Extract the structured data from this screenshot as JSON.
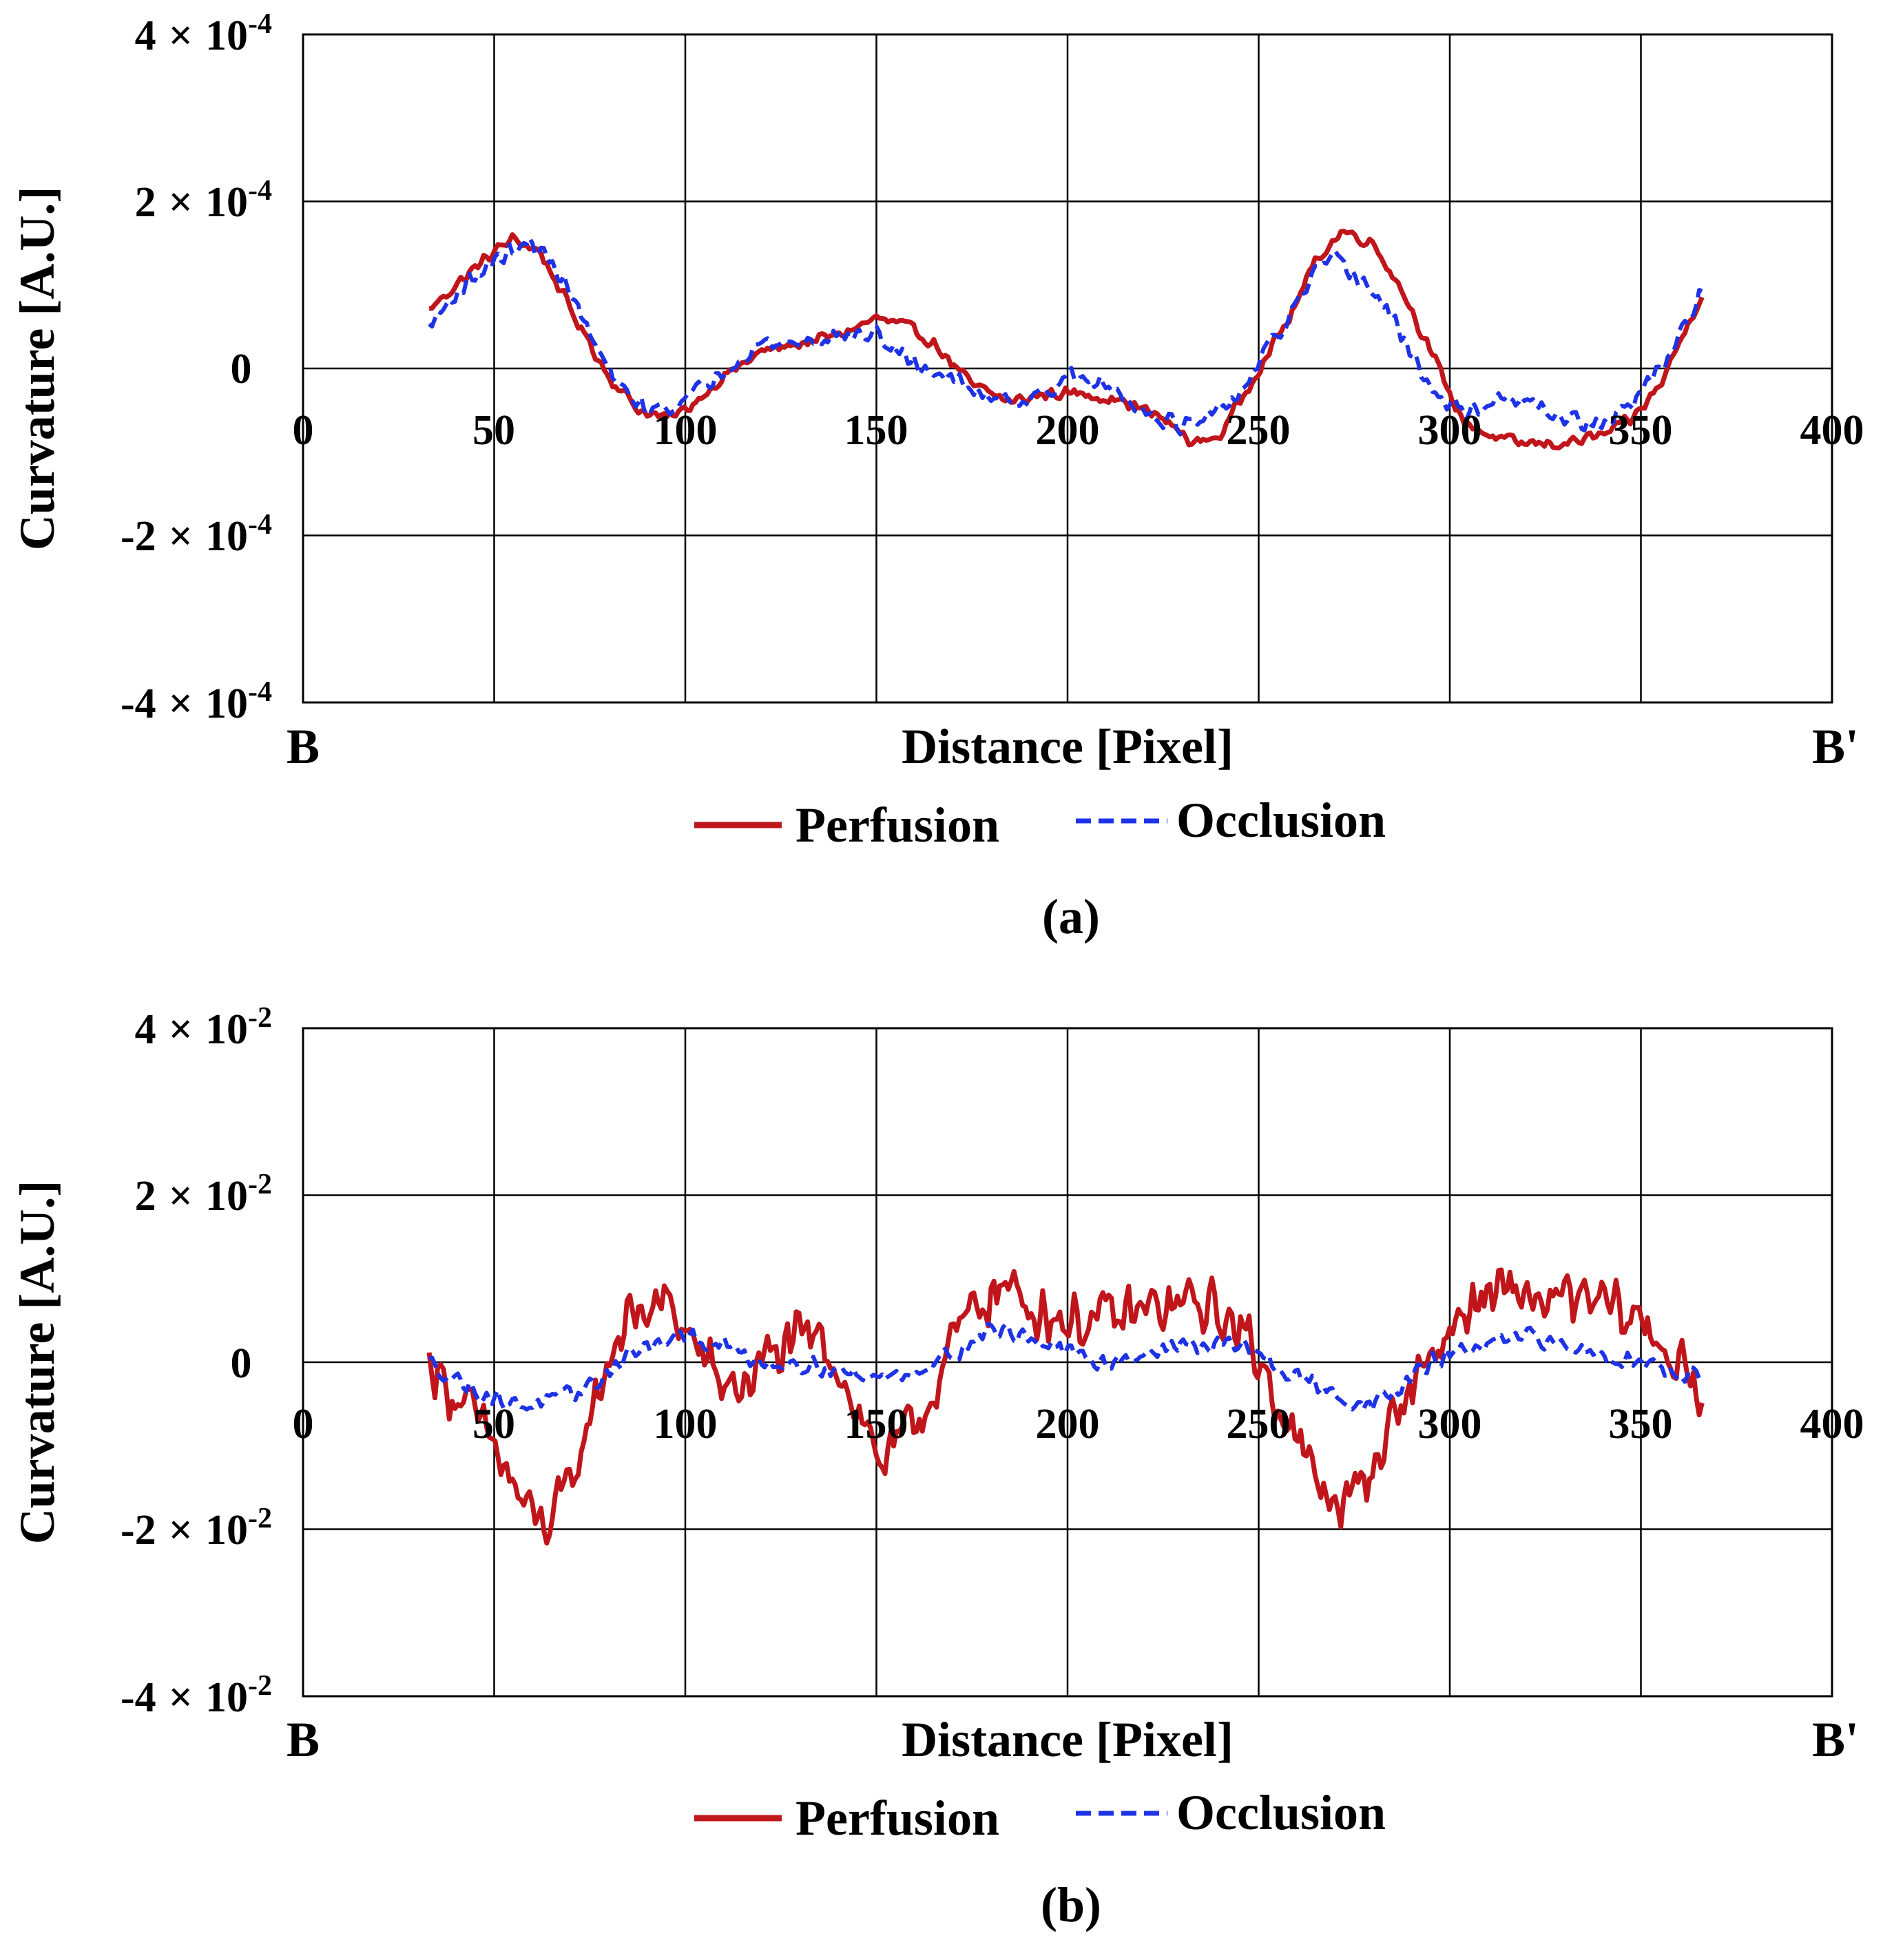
{
  "chart_data": [
    {
      "type": "line",
      "panel_label": "(a)",
      "xlabel": "Distance [Pixel]",
      "ylabel": "Curvature [A.U.]",
      "x_start_label": "B",
      "x_end_label": "B'",
      "xlim": [
        0,
        400
      ],
      "ylim": [
        -0.0004,
        0.0004
      ],
      "xticks": [
        0,
        50,
        100,
        150,
        200,
        250,
        300,
        350,
        400
      ],
      "yticks": [
        {
          "value": 0.0004,
          "mant": "4",
          "times": "×",
          "base": "10",
          "exp": "-4"
        },
        {
          "value": 0.0002,
          "mant": "2",
          "times": "×",
          "base": "10",
          "exp": "-4"
        },
        {
          "value": 0,
          "mant": "0",
          "times": "",
          "base": "",
          "exp": ""
        },
        {
          "value": -0.0002,
          "mant": "-2",
          "times": "×",
          "base": "10",
          "exp": "-4"
        },
        {
          "value": -0.0004,
          "mant": "-4",
          "times": "×",
          "base": "10",
          "exp": "-4"
        }
      ],
      "grid": true,
      "legend_position": "bottom-center",
      "series": [
        {
          "name": "Perfusion",
          "color": "#c0161b",
          "dash": "solid",
          "noise": 8.5e-06,
          "anchors": [
            [
              33,
              7e-05
            ],
            [
              40,
              0.0001
            ],
            [
              50,
              0.00014
            ],
            [
              55,
              0.000155
            ],
            [
              62,
              0.00014
            ],
            [
              70,
              7e-05
            ],
            [
              80,
              -1e-05
            ],
            [
              88,
              -5e-05
            ],
            [
              95,
              -6e-05
            ],
            [
              100,
              -5e-05
            ],
            [
              110,
              -1e-05
            ],
            [
              120,
              2e-05
            ],
            [
              130,
              3e-05
            ],
            [
              140,
              4e-05
            ],
            [
              150,
              6e-05
            ],
            [
              158,
              5e-05
            ],
            [
              165,
              3e-05
            ],
            [
              175,
              -2e-05
            ],
            [
              185,
              -4e-05
            ],
            [
              195,
              -3e-05
            ],
            [
              205,
              -3e-05
            ],
            [
              215,
              -4e-05
            ],
            [
              225,
              -6e-05
            ],
            [
              233,
              -9e-05
            ],
            [
              240,
              -8e-05
            ],
            [
              250,
              0
            ],
            [
              258,
              6e-05
            ],
            [
              265,
              0.00013
            ],
            [
              272,
              0.000165
            ],
            [
              280,
              0.00015
            ],
            [
              288,
              9e-05
            ],
            [
              295,
              2e-05
            ],
            [
              303,
              -6e-05
            ],
            [
              310,
              -8e-05
            ],
            [
              318,
              -9e-05
            ],
            [
              330,
              -9e-05
            ],
            [
              340,
              -8e-05
            ],
            [
              348,
              -6e-05
            ],
            [
              355,
              -2e-05
            ],
            [
              360,
              3e-05
            ],
            [
              366,
              9e-05
            ]
          ]
        },
        {
          "name": "Occlusion",
          "color": "#1e32e6",
          "dash": "dashed",
          "noise": 1.25e-05,
          "anchors": [
            [
              33,
              5e-05
            ],
            [
              40,
              9e-05
            ],
            [
              50,
              0.00013
            ],
            [
              60,
              0.00015
            ],
            [
              68,
              0.00011
            ],
            [
              75,
              4e-05
            ],
            [
              82,
              -2e-05
            ],
            [
              90,
              -5e-05
            ],
            [
              100,
              -4e-05
            ],
            [
              110,
              0
            ],
            [
              120,
              3e-05
            ],
            [
              130,
              3e-05
            ],
            [
              140,
              4e-05
            ],
            [
              150,
              4e-05
            ],
            [
              158,
              1e-05
            ],
            [
              168,
              -1e-05
            ],
            [
              178,
              -3e-05
            ],
            [
              190,
              -4e-05
            ],
            [
              200,
              -1e-05
            ],
            [
              210,
              -2e-05
            ],
            [
              220,
              -5e-05
            ],
            [
              230,
              -7e-05
            ],
            [
              238,
              -6e-05
            ],
            [
              245,
              -3e-05
            ],
            [
              252,
              2e-05
            ],
            [
              258,
              6e-05
            ],
            [
              264,
              0.00011
            ],
            [
              270,
              0.00013
            ],
            [
              276,
              0.00011
            ],
            [
              282,
              8e-05
            ],
            [
              290,
              2e-05
            ],
            [
              297,
              -4e-05
            ],
            [
              305,
              -5e-05
            ],
            [
              312,
              -4e-05
            ],
            [
              320,
              -4e-05
            ],
            [
              330,
              -6e-05
            ],
            [
              340,
              -7e-05
            ],
            [
              348,
              -4e-05
            ],
            [
              355,
              0
            ],
            [
              360,
              4e-05
            ],
            [
              366,
              9e-05
            ]
          ]
        }
      ]
    },
    {
      "type": "line",
      "panel_label": "(b)",
      "xlabel": "Distance [Pixel]",
      "ylabel": "Curvature [A.U.]",
      "x_start_label": "B",
      "x_end_label": "B'",
      "xlim": [
        0,
        400
      ],
      "ylim": [
        -0.04,
        0.04
      ],
      "xticks": [
        0,
        50,
        100,
        150,
        200,
        250,
        300,
        350,
        400
      ],
      "yticks": [
        {
          "value": 0.04,
          "mant": "4",
          "times": "×",
          "base": "10",
          "exp": "-2"
        },
        {
          "value": 0.02,
          "mant": "2",
          "times": "×",
          "base": "10",
          "exp": "-2"
        },
        {
          "value": 0,
          "mant": "0",
          "times": "",
          "base": "",
          "exp": ""
        },
        {
          "value": -0.02,
          "mant": "-2",
          "times": "×",
          "base": "10",
          "exp": "-2"
        },
        {
          "value": -0.04,
          "mant": "-4",
          "times": "×",
          "base": "10",
          "exp": "-2"
        }
      ],
      "grid": true,
      "legend_position": "bottom-center",
      "series": [
        {
          "name": "Perfusion",
          "color": "#c0161b",
          "dash": "solid",
          "noise": 0.0042,
          "anchors": [
            [
              33,
              0
            ],
            [
              40,
              -0.004
            ],
            [
              50,
              -0.01
            ],
            [
              55,
              -0.015
            ],
            [
              60,
              -0.019
            ],
            [
              65,
              -0.019
            ],
            [
              70,
              -0.015
            ],
            [
              76,
              -0.005
            ],
            [
              82,
              0.003
            ],
            [
              88,
              0.006
            ],
            [
              95,
              0.007
            ],
            [
              100,
              0.004
            ],
            [
              108,
              -0.002
            ],
            [
              115,
              -0.003
            ],
            [
              120,
              0
            ],
            [
              128,
              0.002
            ],
            [
              135,
              0.003
            ],
            [
              140,
              0
            ],
            [
              145,
              -0.006
            ],
            [
              152,
              -0.012
            ],
            [
              158,
              -0.009
            ],
            [
              163,
              -0.005
            ],
            [
              170,
              0.002
            ],
            [
              176,
              0.007
            ],
            [
              182,
              0.009
            ],
            [
              190,
              0.007
            ],
            [
              200,
              0.005
            ],
            [
              210,
              0.005
            ],
            [
              220,
              0.006
            ],
            [
              230,
              0.007
            ],
            [
              240,
              0.006
            ],
            [
              248,
              0.002
            ],
            [
              255,
              -0.004
            ],
            [
              262,
              -0.012
            ],
            [
              268,
              -0.016
            ],
            [
              274,
              -0.017
            ],
            [
              280,
              -0.012
            ],
            [
              287,
              -0.005
            ],
            [
              295,
              0.001
            ],
            [
              302,
              0.005
            ],
            [
              310,
              0.008
            ],
            [
              320,
              0.008
            ],
            [
              330,
              0.007
            ],
            [
              340,
              0.007
            ],
            [
              350,
              0.005
            ],
            [
              356,
              0.002
            ],
            [
              362,
              -0.002
            ],
            [
              366,
              -0.005
            ]
          ]
        },
        {
          "name": "Occlusion",
          "color": "#1e32e6",
          "dash": "dashed",
          "noise": 0.0013,
          "anchors": [
            [
              33,
              0
            ],
            [
              40,
              -0.002
            ],
            [
              48,
              -0.004
            ],
            [
              55,
              -0.005
            ],
            [
              62,
              -0.005
            ],
            [
              70,
              -0.004
            ],
            [
              78,
              -0.002
            ],
            [
              85,
              0.001
            ],
            [
              92,
              0.002
            ],
            [
              100,
              0.003
            ],
            [
              110,
              0.002
            ],
            [
              120,
              0
            ],
            [
              130,
              0
            ],
            [
              140,
              -0.001
            ],
            [
              150,
              -0.002
            ],
            [
              160,
              -0.001
            ],
            [
              170,
              0.001
            ],
            [
              180,
              0.004
            ],
            [
              190,
              0.003
            ],
            [
              200,
              0.001
            ],
            [
              210,
              0
            ],
            [
              220,
              0.001
            ],
            [
              230,
              0.002
            ],
            [
              240,
              0.002
            ],
            [
              248,
              0.002
            ],
            [
              255,
              -0.001
            ],
            [
              262,
              -0.002
            ],
            [
              270,
              -0.004
            ],
            [
              278,
              -0.005
            ],
            [
              285,
              -0.004
            ],
            [
              292,
              -0.001
            ],
            [
              300,
              0.001
            ],
            [
              310,
              0.002
            ],
            [
              320,
              0.003
            ],
            [
              330,
              0.002
            ],
            [
              340,
              0.001
            ],
            [
              350,
              0
            ],
            [
              360,
              -0.001
            ],
            [
              366,
              -0.002
            ]
          ]
        }
      ]
    }
  ]
}
